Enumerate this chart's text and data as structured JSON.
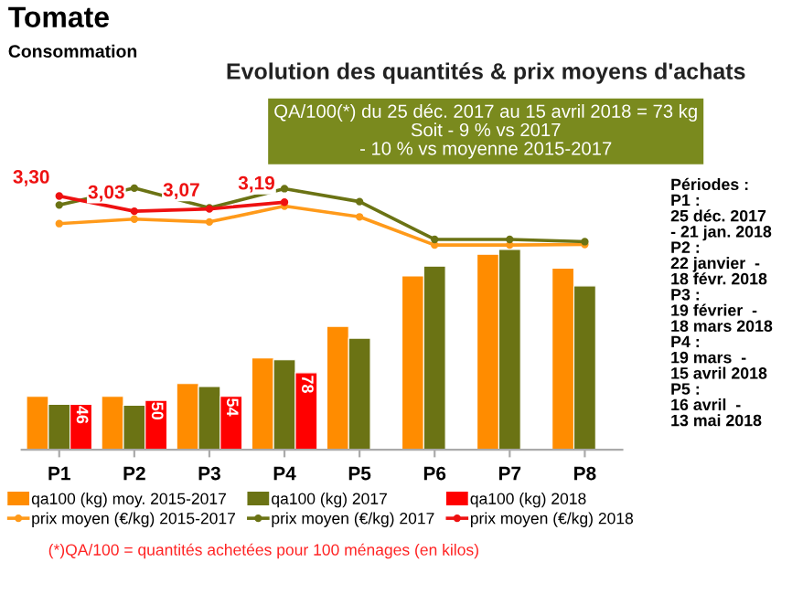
{
  "chart_data": {
    "type": "bar",
    "title": "Tomate",
    "subtitle": "Consommation",
    "annotations": [
      "Evolution des quantités & prix moyens d'achats",
      "QA/100(*) du 25 déc. 2017 au 15 avril 2018 = 73 kg\nSoit - 9 % vs 2017\n- 10 % vs moyenne 2015-2017",
      "Périodes :\nP1 :\n25 déc. 2017\n- 21 jan. 2018\nP2 :\n22 janvier  -\n18 févr. 2018\nP3 :\n19 février  -\n18 mars 2018\nP4 :\n19 mars  -\n15 avril 2018\nP5 :\n16 avril  -\n13 mai 2018",
      "(*)QA/100 = quantités achetées pour 100 ménages (en kilos)"
    ],
    "categories": [
      "P1",
      "P2",
      "P3",
      "P4",
      "P5",
      "P6",
      "P7",
      "P8"
    ],
    "series": [
      {
        "name": "qa100 (kg) moy. 2015-2017",
        "color": "#ff8c00",
        "values": [
          54,
          54,
          67,
          93,
          125,
          176,
          198,
          184
        ]
      },
      {
        "name": "qa100 (kg) 2017",
        "color": "#6b7314",
        "values": [
          46,
          45,
          64,
          91,
          113,
          186,
          203,
          166
        ]
      },
      {
        "name": "qa100 (kg) 2018",
        "color": "#ff0000",
        "values": [
          46,
          50,
          54,
          78,
          null,
          null,
          null,
          null
        ],
        "value_labels": [
          "46",
          "50",
          "54",
          "78",
          null,
          null,
          null,
          null
        ]
      },
      {
        "name": "prix moyen (€/kg) 2015-2017",
        "type": "line",
        "axis": "y2",
        "color": "#ff9a1a",
        "values": [
          2.81,
          2.89,
          2.84,
          3.12,
          2.93,
          2.43,
          2.43,
          2.44
        ]
      },
      {
        "name": "prix moyen (€/kg) 2017",
        "type": "line",
        "axis": "y2",
        "color": "#6b7314",
        "values": [
          3.14,
          3.44,
          3.09,
          3.43,
          3.2,
          2.53,
          2.53,
          2.49
        ]
      },
      {
        "name": "prix moyen (€/kg) 2018",
        "type": "line",
        "axis": "y2",
        "color": "#ee1111",
        "values": [
          3.3,
          3.03,
          3.07,
          3.19,
          null,
          null,
          null,
          null
        ],
        "value_labels": [
          "3,30",
          "3,03",
          "3,07",
          "3,19",
          null,
          null,
          null,
          null
        ]
      }
    ],
    "ylim": [
      0,
      280
    ],
    "y2lim": [
      -1.2,
      3.7
    ],
    "tick_labels": "x",
    "grid": false,
    "legend": "bottom",
    "marker": "circle",
    "line_style": "solid"
  }
}
